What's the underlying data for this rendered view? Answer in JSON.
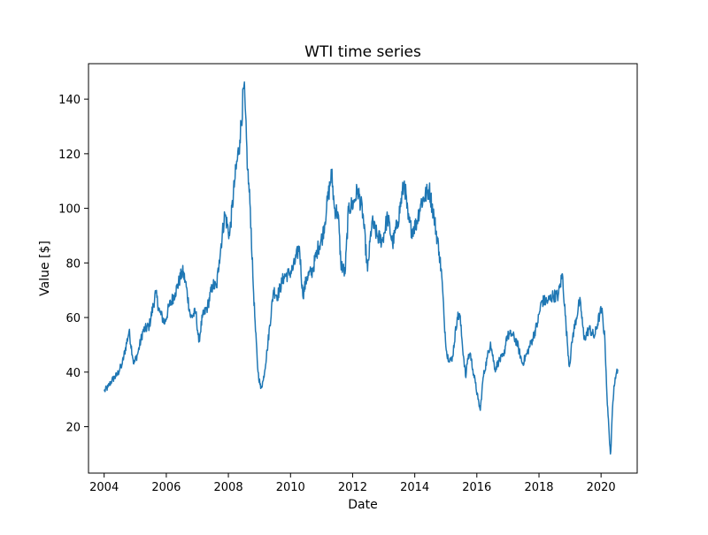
{
  "chart_data": {
    "type": "line",
    "title": "WTI time series",
    "xlabel": "Date",
    "ylabel": "Value [$]",
    "xlim": [
      "2003-07-01",
      "2021-03-01"
    ],
    "ylim": [
      3,
      153
    ],
    "x_ticks": [
      "2004",
      "2006",
      "2008",
      "2010",
      "2012",
      "2014",
      "2016",
      "2018",
      "2020"
    ],
    "y_ticks": [
      "20",
      "40",
      "60",
      "80",
      "100",
      "120",
      "140"
    ],
    "grid": false,
    "legend": "none",
    "series": [
      {
        "color": "#1f77b4",
        "x": [
          "2004-01-02",
          "2004-02-15",
          "2004-04-01",
          "2004-06-01",
          "2004-08-01",
          "2004-10-20",
          "2004-12-15",
          "2005-02-01",
          "2005-04-01",
          "2005-06-15",
          "2005-08-29",
          "2005-10-15",
          "2005-12-15",
          "2006-02-01",
          "2006-04-15",
          "2006-07-10",
          "2006-08-15",
          "2006-10-15",
          "2006-12-15",
          "2007-01-18",
          "2007-03-01",
          "2007-05-01",
          "2007-07-01",
          "2007-08-15",
          "2007-09-15",
          "2007-11-20",
          "2008-01-15",
          "2008-03-15",
          "2008-05-15",
          "2008-07-03",
          "2008-08-15",
          "2008-09-15",
          "2008-10-15",
          "2008-11-15",
          "2008-12-15",
          "2009-01-15",
          "2009-02-15",
          "2009-04-01",
          "2009-06-15",
          "2009-08-01",
          "2009-10-15",
          "2009-12-15",
          "2010-02-01",
          "2010-04-15",
          "2010-05-25",
          "2010-07-15",
          "2010-09-15",
          "2010-11-15",
          "2011-01-15",
          "2011-03-01",
          "2011-04-29",
          "2011-06-01",
          "2011-07-15",
          "2011-08-15",
          "2011-10-04",
          "2011-11-15",
          "2012-01-15",
          "2012-03-01",
          "2012-05-01",
          "2012-06-25",
          "2012-08-15",
          "2012-10-15",
          "2012-12-15",
          "2013-02-15",
          "2013-04-15",
          "2013-06-15",
          "2013-09-01",
          "2013-10-15",
          "2013-11-25",
          "2014-01-15",
          "2014-03-15",
          "2014-06-20",
          "2014-08-15",
          "2014-10-15",
          "2014-11-15",
          "2014-12-15",
          "2015-01-15",
          "2015-03-15",
          "2015-05-15",
          "2015-06-15",
          "2015-07-15",
          "2015-08-25",
          "2015-09-15",
          "2015-10-15",
          "2015-11-15",
          "2015-12-15",
          "2016-01-15",
          "2016-02-11",
          "2016-03-15",
          "2016-05-01",
          "2016-06-10",
          "2016-08-01",
          "2016-09-15",
          "2016-11-15",
          "2016-12-15",
          "2017-02-15",
          "2017-04-15",
          "2017-06-21",
          "2017-08-15",
          "2017-10-15",
          "2017-12-15",
          "2018-02-01",
          "2018-04-15",
          "2018-06-15",
          "2018-08-15",
          "2018-10-03",
          "2018-11-15",
          "2018-12-24",
          "2019-02-01",
          "2019-04-23",
          "2019-05-15",
          "2019-06-15",
          "2019-08-15",
          "2019-10-15",
          "2019-12-15",
          "2020-01-08",
          "2020-02-15",
          "2020-03-15",
          "2020-04-01",
          "2020-04-20",
          "2020-04-28",
          "2020-05-15",
          "2020-06-01",
          "2020-06-15",
          "2020-07-01",
          "2020-07-15"
        ],
        "values": [
          33.0,
          34.5,
          37.0,
          39.0,
          43.0,
          55.0,
          43.0,
          47.0,
          55.0,
          57.0,
          69.0,
          62.0,
          58.0,
          64.0,
          69.0,
          77.0,
          73.0,
          60.0,
          62.0,
          51.0,
          60.0,
          64.0,
          72.0,
          71.0,
          81.0,
          98.0,
          90.0,
          110.0,
          125.0,
          145.0,
          114.0,
          100.0,
          75.0,
          55.0,
          40.0,
          34.0,
          37.0,
          48.0,
          70.0,
          68.0,
          75.0,
          76.0,
          78.0,
          86.0,
          68.0,
          75.0,
          77.0,
          85.0,
          90.0,
          100.0,
          113.0,
          100.0,
          98.0,
          80.0,
          76.0,
          100.0,
          102.0,
          107.0,
          98.0,
          77.0,
          95.0,
          90.0,
          88.0,
          97.0,
          87.0,
          95.0,
          110.0,
          96.0,
          92.0,
          94.0,
          102.0,
          107.0,
          97.0,
          84.0,
          75.0,
          58.0,
          46.0,
          44.0,
          60.0,
          61.0,
          50.0,
          38.0,
          45.0,
          47.0,
          41.0,
          36.0,
          30.0,
          26.0,
          38.0,
          45.0,
          51.0,
          41.0,
          44.0,
          46.0,
          53.0,
          54.0,
          51.0,
          43.0,
          47.0,
          52.0,
          58.0,
          66.0,
          66.0,
          68.0,
          68.0,
          76.0,
          57.0,
          42.0,
          53.0,
          66.0,
          62.0,
          52.0,
          56.0,
          53.0,
          61.0,
          63.0,
          52.0,
          28.0,
          20.0,
          10.0,
          13.0,
          27.0,
          35.0,
          38.0,
          40.0,
          41.0
        ]
      }
    ]
  }
}
